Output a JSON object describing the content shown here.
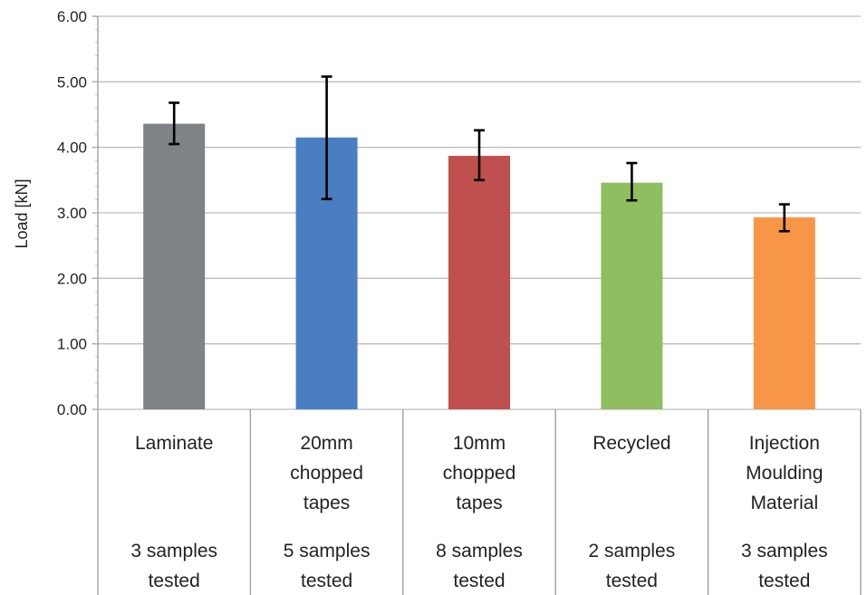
{
  "chart_data": {
    "type": "bar",
    "title": "",
    "xlabel": "",
    "ylabel": "Load [kN]",
    "ylim": [
      0,
      6
    ],
    "yticks": [
      "0.00",
      "1.00",
      "2.00",
      "3.00",
      "4.00",
      "5.00",
      "6.00"
    ],
    "grid": true,
    "legend": "none",
    "categories": [
      {
        "name": [
          "Laminate"
        ],
        "note": [
          "3 samples",
          "tested"
        ]
      },
      {
        "name": [
          "20mm",
          "chopped",
          "tapes"
        ],
        "note": [
          "5  samples",
          "tested"
        ]
      },
      {
        "name": [
          "10mm",
          "chopped",
          "tapes"
        ],
        "note": [
          "8 samples",
          "tested"
        ]
      },
      {
        "name": [
          "Recycled"
        ],
        "note": [
          "2 samples",
          "tested"
        ]
      },
      {
        "name": [
          "Injection",
          "Moulding",
          "Material"
        ],
        "note": [
          "3 samples",
          "tested"
        ]
      }
    ],
    "values": [
      4.36,
      4.15,
      3.87,
      3.46,
      2.93
    ],
    "error_low": [
      4.05,
      3.21,
      3.5,
      3.19,
      2.72
    ],
    "error_high": [
      4.68,
      5.08,
      4.26,
      3.76,
      3.13
    ],
    "colors": [
      "#7f8386",
      "#4a7ec3",
      "#c0504d",
      "#8fbd5f",
      "#f79646"
    ]
  }
}
